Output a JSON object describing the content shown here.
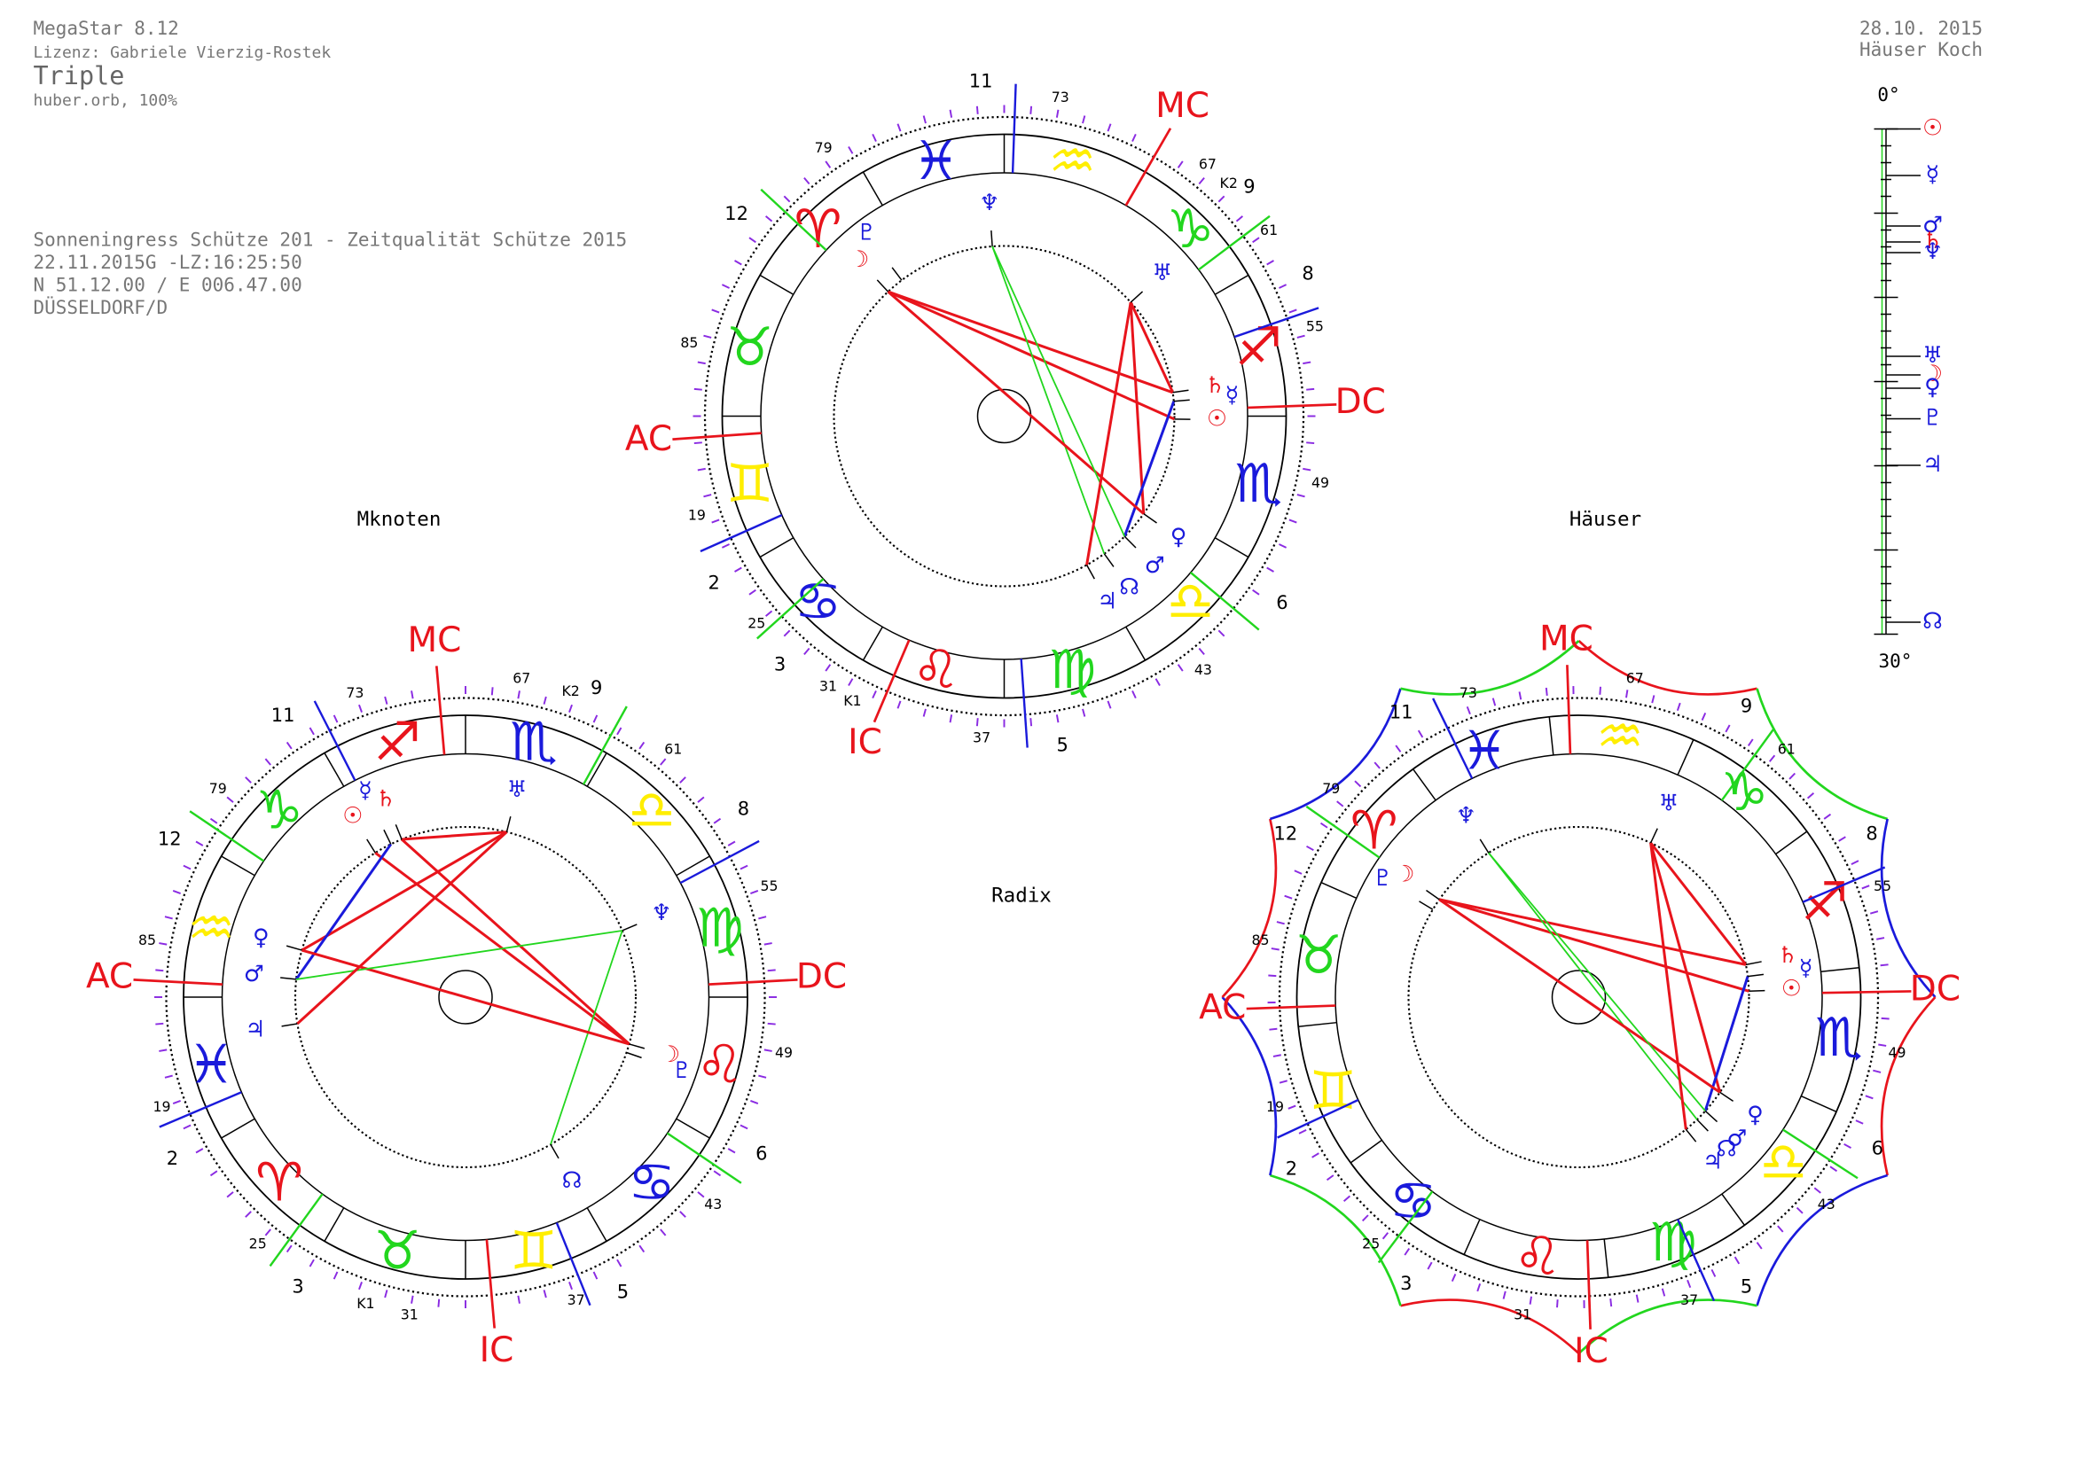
{
  "header": {
    "program": "MegaStar 8.12",
    "license": "Lizenz: Gabriele Vierzig-Rostek",
    "mode": "Triple",
    "orb": "huber.orb, 100%",
    "date": "28.10. 2015",
    "house_system": "Häuser Koch"
  },
  "event": {
    "title": "Sonneningress Schütze 201 - Zeitqualität Schütze 2015",
    "datetime": "22.11.2015G -LZ:16:25:50",
    "coords": "N 51.12.00 / E 006.47.00",
    "place": "DÜSSELDORF/D"
  },
  "panel_labels": [
    "Mknoten",
    "Häuser",
    "Radix"
  ],
  "signs": [
    "♈",
    "♉",
    "♊",
    "♋",
    "♌",
    "♍",
    "♎",
    "♏",
    "♐",
    "♑",
    "♒",
    "♓"
  ],
  "sign_colors": [
    "#e8141c",
    "#22d61e",
    "#ffee00",
    "#1a1adb",
    "#e8141c",
    "#22d61e",
    "#ffee00",
    "#1a1adb",
    "#e8141c",
    "#22d61e",
    "#ffee00",
    "#1a1adb"
  ],
  "wheels": [
    {
      "angles": [
        "AC",
        "MC",
        "DC",
        "IC"
      ],
      "houses": [
        "11",
        "9",
        "8",
        "6",
        "5",
        "3",
        "2",
        "12"
      ],
      "degrees": [
        "73",
        "67",
        "61",
        "55",
        "49",
        "43",
        "37",
        "31",
        "25",
        "19",
        "85",
        "79",
        "K2",
        "K1"
      ],
      "planets": [
        "♆",
        "♅",
        "♄",
        "☉",
        "☿",
        "♀",
        "♂",
        "☊",
        "♃",
        "☽",
        "♇"
      ]
    },
    {
      "angles": [
        "AC",
        "MC",
        "DC",
        "IC"
      ],
      "houses": [
        "11",
        "9",
        "8",
        "6",
        "5",
        "3",
        "2",
        "12"
      ],
      "degrees": [
        "73",
        "67",
        "61",
        "55",
        "49",
        "43",
        "37",
        "31",
        "25",
        "19",
        "85",
        "79",
        "K2",
        "K1"
      ],
      "planets": [
        "♆",
        "♅",
        "♄",
        "☉",
        "☿",
        "♀",
        "♂",
        "☊",
        "♃",
        "☽",
        "♇"
      ]
    },
    {
      "angles": [
        "AC",
        "MC",
        "DC",
        "IC"
      ],
      "houses": [
        "11",
        "9",
        "8",
        "6",
        "5",
        "3",
        "2",
        "12"
      ],
      "degrees": [
        "73",
        "67",
        "61",
        "55",
        "49",
        "43",
        "37",
        "31",
        "25",
        "19",
        "85",
        "79"
      ],
      "planets": [
        "♆",
        "♅",
        "♄",
        "☉",
        "☿",
        "♀",
        "♂",
        "☊",
        "♃",
        "☽",
        "♇"
      ]
    }
  ],
  "scale": {
    "top": "0°",
    "bottom": "30°",
    "glyphs": [
      "☉",
      "☿",
      "♂",
      "♄",
      "♆",
      "♅",
      "☽",
      "♀",
      "♇",
      "♃",
      "☊"
    ]
  }
}
